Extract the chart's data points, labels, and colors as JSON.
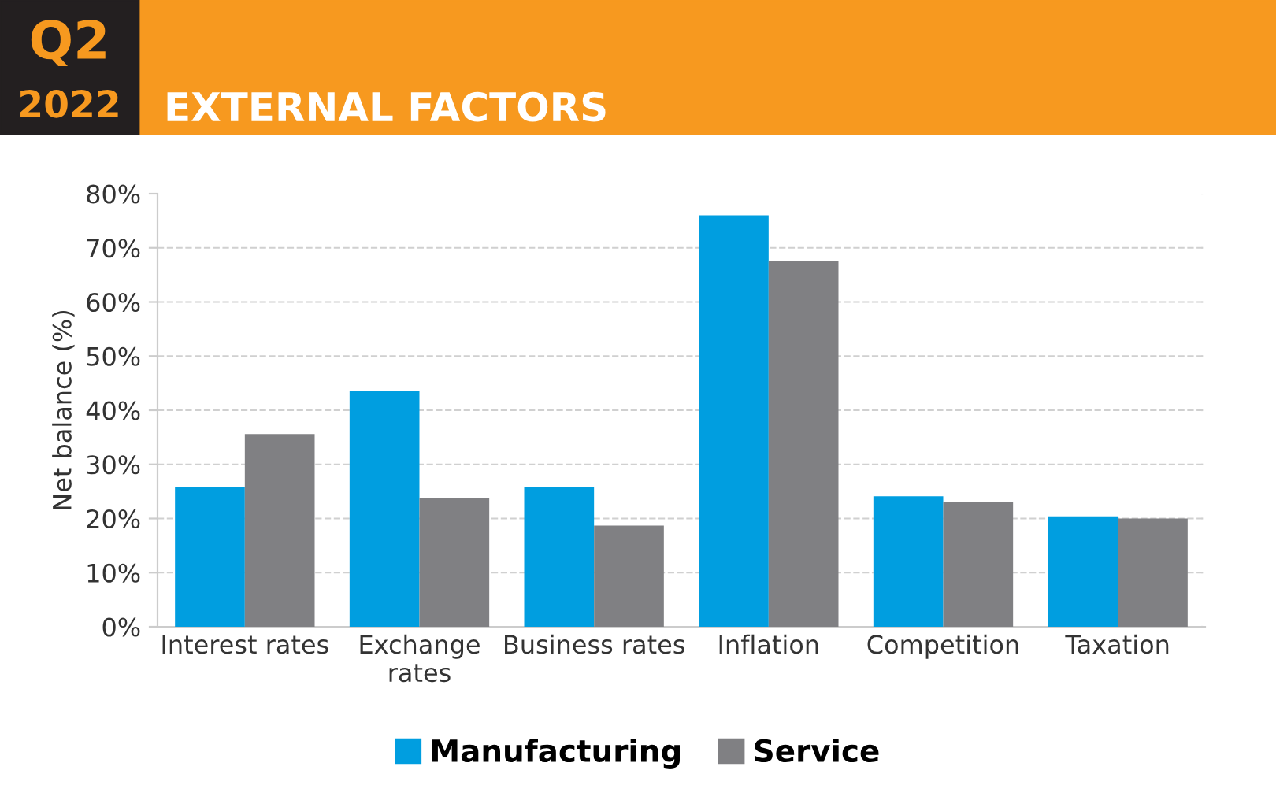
{
  "chart_data": {
    "type": "bar",
    "title": "EXTERNAL FACTORS",
    "annotations": [
      "Q2",
      "2022"
    ],
    "ylabel": "Net balance (%)",
    "categories": [
      "Interest rates",
      "Exchange\nrates",
      "Business rates",
      "Inflation",
      "Competition",
      "Taxation"
    ],
    "series": [
      {
        "name": "Manufacturing",
        "color": "#009ee0",
        "values": [
          25.9,
          43.6,
          25.9,
          76.0,
          24.1,
          20.4
        ]
      },
      {
        "name": "Service",
        "color": "#808083",
        "values": [
          35.6,
          23.8,
          18.7,
          67.6,
          23.1,
          20.0
        ]
      }
    ],
    "ylim": [
      0,
      80
    ],
    "yticks": [
      {
        "value": 0,
        "label": "0%"
      },
      {
        "value": 10,
        "label": "10%"
      },
      {
        "value": 20,
        "label": "20%"
      },
      {
        "value": 30,
        "label": "30%"
      },
      {
        "value": 40,
        "label": "40%"
      },
      {
        "value": 50,
        "label": "50%"
      },
      {
        "value": 60,
        "label": "60%"
      },
      {
        "value": 70,
        "label": "70%"
      },
      {
        "value": 80,
        "label": "80%"
      }
    ],
    "grid": "y",
    "legend": "bottom"
  }
}
